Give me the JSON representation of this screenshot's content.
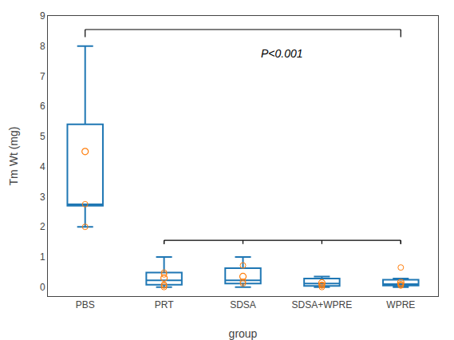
{
  "chart_data": {
    "type": "box",
    "xlabel": "group",
    "ylabel": "Tm Wt (mg)",
    "categories": [
      "PBS",
      "PRT",
      "SDSA",
      "SDSA+WPRE",
      "WPRE"
    ],
    "q1": [
      2.7,
      0.08,
      0.12,
      0.04,
      0.05
    ],
    "median": [
      2.75,
      0.22,
      0.22,
      0.12,
      0.1
    ],
    "q3": [
      5.4,
      0.48,
      0.63,
      0.28,
      0.24
    ],
    "whisker_low": [
      2.0,
      0.0,
      0.0,
      0.0,
      0.0
    ],
    "whisker_high": [
      8.0,
      1.0,
      1.0,
      0.35,
      0.28
    ],
    "mean": [
      4.5,
      0.3,
      0.35,
      0.14,
      0.15
    ],
    "extra_dots": [
      [
        2.0,
        2.75
      ],
      [
        0.0,
        0.05,
        0.08,
        0.42,
        0.48
      ],
      [
        0.12,
        0.18,
        0.72
      ],
      [
        0.0,
        0.05,
        0.07,
        0.08
      ],
      [
        0.05,
        0.07,
        0.1,
        0.65
      ]
    ],
    "brackets": [
      {
        "from": "PBS",
        "to": "WPRE",
        "y": 8.55,
        "drop": 0.25,
        "label": "P<0.001",
        "label_between": [
          "SDSA",
          "SDSA+WPRE"
        ],
        "label_y": 7.5
      },
      {
        "from": "PRT",
        "to": "WPRE",
        "y": 1.55,
        "drop": 0.12,
        "ticks": [
          "PRT",
          "SDSA",
          "SDSA+WPRE",
          "WPRE"
        ]
      }
    ],
    "ylim": [
      -0.3,
      9.0
    ],
    "yticks": [
      0,
      1,
      2,
      3,
      4,
      5,
      6,
      7,
      8,
      9
    ],
    "grid": false
  }
}
